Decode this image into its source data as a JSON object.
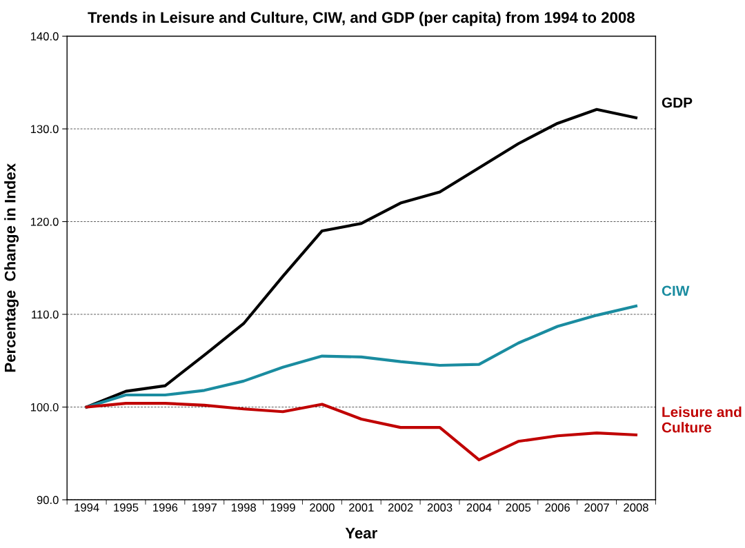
{
  "chart_data": {
    "type": "line",
    "title": "Trends in Leisure and Culture, CIW, and GDP (per capita) from 1994 to 2008",
    "xlabel": "Year",
    "ylabel": "Percentage  Change in Index",
    "categories": [
      "1994",
      "1995",
      "1996",
      "1997",
      "1998",
      "1999",
      "2000",
      "2001",
      "2002",
      "2003",
      "2004",
      "2005",
      "2006",
      "2007",
      "2008"
    ],
    "series": [
      {
        "name": "GDP",
        "color": "#000000",
        "values": [
          100,
          101.7,
          102.3,
          105.6,
          109.0,
          114.1,
          119.0,
          119.8,
          122.0,
          123.2,
          125.8,
          128.4,
          130.6,
          132.1,
          131.2
        ]
      },
      {
        "name": "CIW",
        "color": "#1a8ca0",
        "values": [
          100,
          101.3,
          101.3,
          101.8,
          102.8,
          104.3,
          105.5,
          105.4,
          104.9,
          104.5,
          104.6,
          106.9,
          108.7,
          109.9,
          110.9
        ]
      },
      {
        "name": "Leisure and\nCulture",
        "color": "#c00000",
        "values": [
          100,
          100.4,
          100.4,
          100.2,
          99.8,
          99.5,
          100.3,
          98.7,
          97.8,
          97.8,
          94.3,
          96.3,
          96.9,
          97.2,
          97.0
        ]
      }
    ],
    "ylim": [
      90,
      140
    ],
    "yticks": [
      {
        "value": 90,
        "label": "90.0"
      },
      {
        "value": 100,
        "label": "100.0"
      },
      {
        "value": 110,
        "label": "110.0"
      },
      {
        "value": 120,
        "label": "120.0"
      },
      {
        "value": 130,
        "label": "130.0"
      },
      {
        "value": 140,
        "label": "140.0"
      }
    ],
    "grid": "y",
    "legend": false,
    "marker": "none",
    "line_style": "solid"
  }
}
